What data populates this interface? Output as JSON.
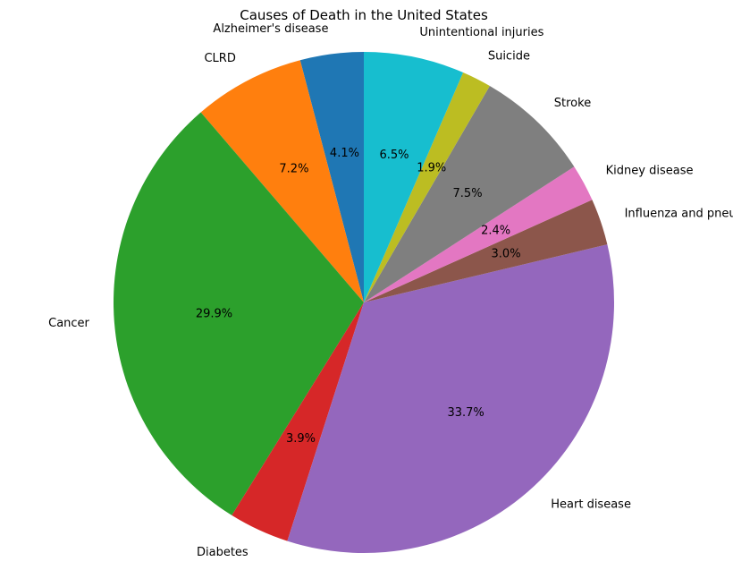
{
  "chart_data": {
    "type": "pie",
    "title": "Causes of Death in the United States",
    "start_angle": 90,
    "direction": "counterclockwise",
    "legend": "none",
    "slices": [
      {
        "label": "Alzheimer's disease",
        "pct": "4.1%",
        "value": 4.1,
        "color": "#1f77b4"
      },
      {
        "label": "CLRD",
        "pct": "7.2%",
        "value": 7.2,
        "color": "#ff7f0e"
      },
      {
        "label": "Cancer",
        "pct": "29.9%",
        "value": 29.9,
        "color": "#2ca02c"
      },
      {
        "label": "Diabetes",
        "pct": "3.9%",
        "value": 3.9,
        "color": "#d62728"
      },
      {
        "label": "Heart disease",
        "pct": "33.7%",
        "value": 33.7,
        "color": "#9467bd"
      },
      {
        "label": "Influenza and pneumonia",
        "pct": "3.0%",
        "value": 3.0,
        "color": "#8c564b"
      },
      {
        "label": "Kidney disease",
        "pct": "2.4%",
        "value": 2.4,
        "color": "#e377c2"
      },
      {
        "label": "Stroke",
        "pct": "7.5%",
        "value": 7.5,
        "color": "#7f7f7f"
      },
      {
        "label": "Suicide",
        "pct": "1.9%",
        "value": 1.9,
        "color": "#bcbd22"
      },
      {
        "label": "Unintentional injuries",
        "pct": "6.5%",
        "value": 6.5,
        "color": "#17becf"
      }
    ]
  }
}
